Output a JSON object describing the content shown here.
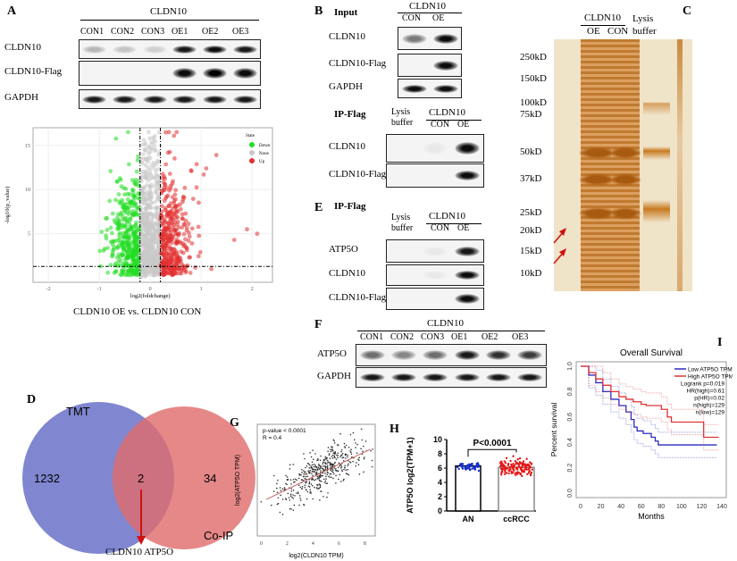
{
  "panels": {
    "A": "A",
    "B": "B",
    "C": "C",
    "D": "D",
    "E": "E",
    "F": "F",
    "G": "G",
    "H": "H",
    "I": "I"
  },
  "A": {
    "group": "CLDN10",
    "lanes": [
      "CON1",
      "CON2",
      "CON3",
      "OE1",
      "OE2",
      "OE3"
    ],
    "blots": [
      {
        "label": "CLDN10",
        "bands": [
          0.25,
          0.2,
          0.15,
          0.9,
          0.95,
          0.9
        ]
      },
      {
        "label": "CLDN10-Flag",
        "bands": [
          0,
          0,
          0,
          0.95,
          1,
          0.95
        ]
      },
      {
        "label": "GAPDH",
        "bands": [
          0.9,
          0.9,
          0.9,
          0.9,
          0.9,
          0.9
        ]
      }
    ],
    "volcano": {
      "type": "scatter",
      "xlabel": "log2(foldchange)",
      "ylabel": "-log10(p_value)",
      "xticks": [
        -2,
        -1,
        0,
        1,
        2
      ],
      "yticks": [
        5,
        10,
        15
      ],
      "xlim": [
        -2.3,
        2.4
      ],
      "ylim": [
        -0.5,
        17
      ],
      "thresholds": {
        "x": [
          -0.2,
          0.2
        ],
        "y": 1.3
      },
      "legend_title": "State",
      "legend": [
        {
          "name": "Down",
          "color": "#22dd22"
        },
        {
          "name": "None",
          "color": "#c8c8c8"
        },
        {
          "name": "Up",
          "color": "#e23030"
        }
      ],
      "legend_position": "top-right"
    },
    "caption": "CLDN10 OE vs. CLDN10 CON"
  },
  "B": {
    "input_label": "Input",
    "group": "CLDN10",
    "lanes": [
      "CON",
      "OE"
    ],
    "input_blots": [
      {
        "label": "CLDN10",
        "bands": [
          0.5,
          0.95
        ]
      },
      {
        "label": "CLDN10-Flag",
        "bands": [
          0,
          0.95
        ]
      },
      {
        "label": "GAPDH",
        "bands": [
          0.95,
          0.95
        ]
      }
    ],
    "ip_label": "IP-Flag",
    "lysis": "Lysis buffer",
    "ip_group": "CLDN10",
    "ip_lanes": [
      "CON",
      "OE"
    ],
    "ip_blots": [
      {
        "label": "CLDN10",
        "bands": [
          0,
          0.05,
          0.95
        ]
      },
      {
        "label": "CLDN10-Flag",
        "bands": [
          0,
          0,
          0.95
        ]
      }
    ]
  },
  "C": {
    "group": "CLDN10",
    "lanes": [
      "OE",
      "CON"
    ],
    "lysis": "Lysis buffer",
    "markers": [
      "250kD",
      "150kD",
      "100kD",
      "75kD",
      "50kD",
      "37kD",
      "25kD",
      "20kD",
      "15kD",
      "10kD"
    ]
  },
  "D": {
    "set_a": "TMT",
    "set_b": "Co-IP",
    "only_a": "1232",
    "both": "2",
    "only_b": "34",
    "result": "CLDN10 ATP5O",
    "colors": {
      "a": "#6a72c8",
      "b": "#e06a6a",
      "arrow": "#d01010"
    }
  },
  "E": {
    "ip_label": "IP-Flag",
    "lysis": "Lysis buffer",
    "group": "CLDN10",
    "lanes": [
      "CON",
      "OE"
    ],
    "blots": [
      {
        "label": "ATP5O",
        "bands": [
          0,
          0.05,
          0.9
        ]
      },
      {
        "label": "CLDN10",
        "bands": [
          0,
          0.05,
          0.95
        ]
      },
      {
        "label": "CLDN10-Flag",
        "bands": [
          0,
          0,
          0.95
        ]
      }
    ]
  },
  "F": {
    "group": "CLDN10",
    "lanes": [
      "CON1",
      "CON2",
      "CON3",
      "OE1",
      "OE2",
      "OE3"
    ],
    "blots": [
      {
        "label": "ATP5O",
        "bands": [
          0.55,
          0.45,
          0.55,
          0.9,
          0.8,
          0.75
        ]
      },
      {
        "label": "GAPDH",
        "bands": [
          0.9,
          0.9,
          0.9,
          0.9,
          0.9,
          0.9
        ]
      }
    ]
  },
  "chart_data": [
    {
      "panel": "G",
      "type": "scatter",
      "xlabel": "log2(CLDN10 TPM)",
      "ylabel": "log2(ATP5O TPM)",
      "xticks": [
        0,
        2,
        4,
        6,
        8
      ],
      "xlim": [
        -0.3,
        8.8
      ],
      "ylim": [
        3.8,
        9.6
      ],
      "annotations": [
        "p-value < 0.0001",
        "R = 0.4"
      ],
      "fit_line": {
        "x": [
          0.4,
          8.4
        ],
        "y": [
          5.7,
          8.3
        ],
        "color": "#c86464"
      }
    },
    {
      "panel": "H",
      "type": "bar",
      "categories": [
        "AN",
        "ccRCC"
      ],
      "values": [
        6.3,
        6.1
      ],
      "ylabel": "ATP5O log2(TPM+1)",
      "yticks": [
        0,
        2,
        4,
        6,
        8,
        10
      ],
      "ylim": [
        0,
        10
      ],
      "colors": [
        "#1530c8",
        "#e81818"
      ],
      "annotation": "P<0.0001"
    },
    {
      "panel": "I",
      "type": "line",
      "title": "Overall Survival",
      "xlabel": "Months",
      "ylabel": "Percent survival",
      "xticks": [
        0,
        20,
        40,
        60,
        80,
        100,
        120,
        140
      ],
      "yticks": [
        "0.0",
        "0.2",
        "0.4",
        "0.6",
        "0.8",
        "1.0"
      ],
      "xlim": [
        0,
        140
      ],
      "ylim": [
        0,
        1
      ],
      "series": [
        {
          "name": "Low ATP5O TPM",
          "color": "#2a2ac0",
          "x": [
            0,
            8,
            15,
            22,
            30,
            38,
            45,
            50,
            53,
            56,
            62,
            70,
            74,
            77,
            135
          ],
          "y": [
            1,
            0.93,
            0.87,
            0.8,
            0.74,
            0.69,
            0.64,
            0.58,
            0.52,
            0.49,
            0.47,
            0.44,
            0.41,
            0.38,
            0.38
          ]
        },
        {
          "name": "High ATP5O TPM",
          "color": "#e03434",
          "x": [
            0,
            8,
            15,
            22,
            30,
            38,
            45,
            52,
            60,
            65,
            80,
            86,
            90,
            120,
            122,
            137
          ],
          "y": [
            1,
            0.95,
            0.9,
            0.85,
            0.8,
            0.76,
            0.74,
            0.72,
            0.7,
            0.69,
            0.66,
            0.6,
            0.56,
            0.56,
            0.44,
            0.44
          ]
        }
      ],
      "stats": [
        "Logrank p=0.019",
        "HR(high)=0.61",
        "p(HR)=0.02",
        "n(high)=129",
        "n(low)=129"
      ]
    }
  ]
}
